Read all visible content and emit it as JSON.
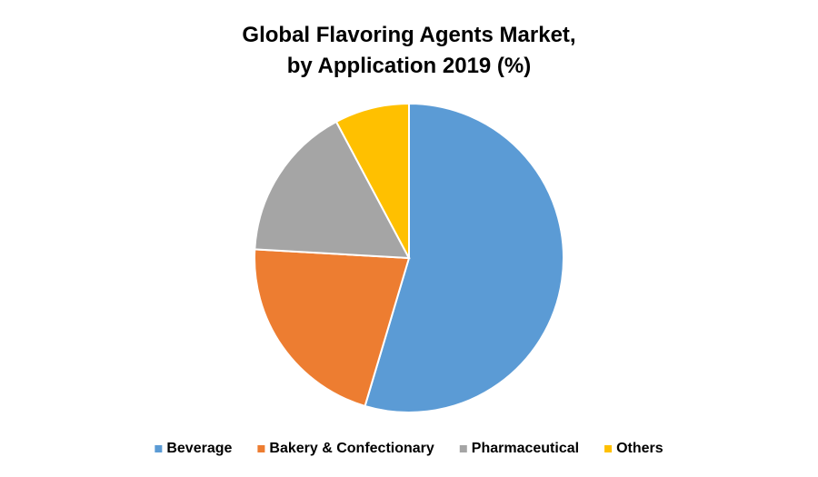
{
  "chart_data": {
    "type": "pie",
    "title": [
      "Global Flavoring Agents Market,",
      "by Application 2019 (%)"
    ],
    "categories": [
      "Beverage",
      "Bakery & Confectionary",
      "Pharmaceutical",
      "Others"
    ],
    "values": [
      54.6,
      21.3,
      16.3,
      7.8
    ],
    "colors": [
      "#5b9bd5",
      "#ed7d31",
      "#a5a5a5",
      "#ffc000"
    ],
    "legend": "bottom"
  }
}
